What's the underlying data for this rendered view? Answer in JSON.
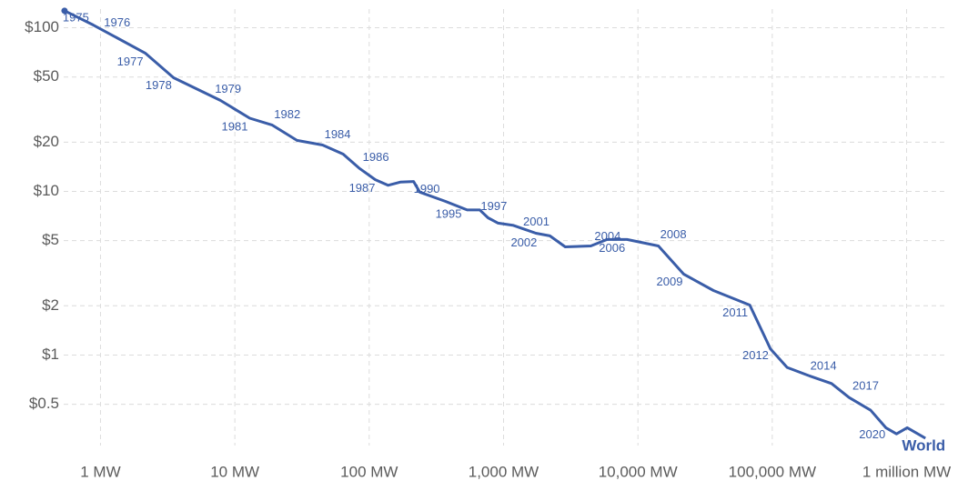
{
  "chart_data": {
    "type": "line",
    "log_x": true,
    "log_y": true,
    "grid": true,
    "xlim": [
      0.5,
      2000000
    ],
    "ylim": [
      0.28,
      130
    ],
    "xticks": [
      {
        "value": 1,
        "label": "1 MW"
      },
      {
        "value": 10,
        "label": "10 MW"
      },
      {
        "value": 100,
        "label": "100 MW"
      },
      {
        "value": 1000,
        "label": "1,000 MW"
      },
      {
        "value": 10000,
        "label": "10,000 MW"
      },
      {
        "value": 100000,
        "label": "100,000 MW"
      },
      {
        "value": 1000000,
        "label": "1 million MW"
      }
    ],
    "yticks": [
      {
        "value": 0.5,
        "label": "$0.5"
      },
      {
        "value": 1,
        "label": "$1"
      },
      {
        "value": 2,
        "label": "$2"
      },
      {
        "value": 5,
        "label": "$5"
      },
      {
        "value": 10,
        "label": "$10"
      },
      {
        "value": 20,
        "label": "$20"
      },
      {
        "value": 50,
        "label": "$50"
      },
      {
        "value": 100,
        "label": "$100"
      }
    ],
    "x": [
      0.54,
      0.88,
      2.15,
      3.5,
      7.8,
      12.9,
      19,
      29,
      45,
      64,
      84,
      111,
      138,
      170,
      214,
      238,
      368,
      536,
      666,
      766,
      910,
      1186,
      1450,
      1740,
      2210,
      2880,
      4460,
      5900,
      8300,
      9760,
      14200,
      21900,
      36500,
      68000,
      97000,
      129000,
      186000,
      276000,
      373000,
      540000,
      700000,
      840000,
      1010000,
      1380000
    ],
    "series": [
      {
        "name": "World",
        "color": "#3a5da8",
        "values": [
          127,
          104,
          70,
          49.5,
          36,
          28,
          25.4,
          20.5,
          19.2,
          16.9,
          13.9,
          11.8,
          10.9,
          11.4,
          11.5,
          9.9,
          8.7,
          7.7,
          7.7,
          6.9,
          6.4,
          6.2,
          5.85,
          5.55,
          5.35,
          4.58,
          4.64,
          5.08,
          5.08,
          4.95,
          4.64,
          3.12,
          2.48,
          2.02,
          1.09,
          0.84,
          0.75,
          0.67,
          0.55,
          0.46,
          0.36,
          0.33,
          0.36,
          0.31
        ],
        "point_labels": [
          "1975",
          "1976",
          "1977",
          "1978",
          "1979",
          "1981",
          "1982",
          null,
          "1984",
          null,
          "1986",
          "1987",
          null,
          null,
          "1990",
          null,
          null,
          "1995",
          null,
          "1997",
          null,
          null,
          null,
          "2001",
          "2002",
          null,
          "2004",
          null,
          "2006",
          null,
          "2008",
          "2009",
          null,
          "2011",
          "2012",
          null,
          "2014",
          null,
          null,
          "2017",
          null,
          null,
          "2020",
          null
        ]
      }
    ]
  }
}
